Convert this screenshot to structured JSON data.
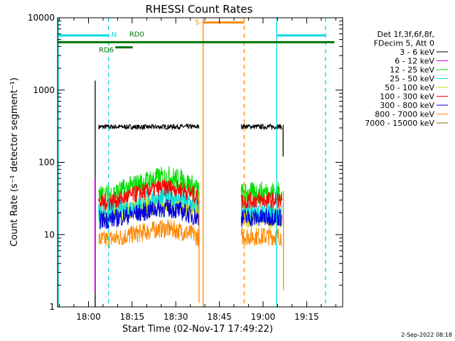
{
  "chart_data": {
    "type": "line",
    "title": "RHESSI Count Rates",
    "xlabel": "Start Time (02-Nov-17 17:49:22)",
    "ylabel": "Count Rate (s⁻¹ detector segment⁻¹)",
    "x_unit": "minutes of day",
    "xlim": [
      1069.37,
      1167.37
    ],
    "ylim": [
      1,
      10000
    ],
    "log_y": true,
    "grid": false,
    "legend_position": "top-right",
    "x_ticks": [
      {
        "value": 1080,
        "label": "18:00"
      },
      {
        "value": 1095,
        "label": "18:15"
      },
      {
        "value": 1110,
        "label": "18:30"
      },
      {
        "value": 1125,
        "label": "18:45"
      },
      {
        "value": 1140,
        "label": "19:00"
      },
      {
        "value": 1155,
        "label": "19:15"
      }
    ],
    "y_ticks": [
      {
        "value": 1,
        "label": "1"
      },
      {
        "value": 10,
        "label": "10"
      },
      {
        "value": 100,
        "label": "100"
      },
      {
        "value": 1000,
        "label": "1000"
      },
      {
        "value": 10000,
        "label": "10000"
      }
    ],
    "legend_header": [
      "Det 1f,3f,6f,8f,",
      "FDecim 5, Att 0"
    ],
    "series": [
      {
        "name": "3 - 6 keV",
        "color": "#000000",
        "segments": [
          {
            "x": [
              1083.5,
              1090,
              1100,
              1110,
              1118
            ],
            "y": [
              310,
              310,
              308,
              312,
              310
            ]
          },
          {
            "x": [
              1132.5,
              1140,
              1146.5
            ],
            "y": [
              315,
              310,
              312
            ]
          }
        ]
      },
      {
        "name": "6 - 12 keV",
        "color": "#cc00cc",
        "segments": []
      },
      {
        "name": "12 - 25 keV",
        "color": "#00dd00",
        "segments": [
          {
            "x": [
              1083.5,
              1086,
              1090,
              1095,
              1100,
              1104,
              1108,
              1112,
              1116,
              1118
            ],
            "y": [
              34,
              35,
              38,
              46,
              54,
              60,
              62,
              56,
              46,
              40
            ]
          },
          {
            "x": [
              1132.5,
              1136,
              1140,
              1144,
              1146.5
            ],
            "y": [
              36,
              37,
              38,
              38,
              37
            ]
          }
        ]
      },
      {
        "name": "25 - 50 keV",
        "color": "#00dddd",
        "segments": [
          {
            "x": [
              1083.5,
              1090,
              1095,
              1100,
              1104,
              1108,
              1112,
              1116,
              1118
            ],
            "y": [
              21,
              22,
              25,
              30,
              33,
              34,
              31,
              26,
              23
            ]
          },
          {
            "x": [
              1132.5,
              1146.5
            ],
            "y": [
              20,
              20
            ]
          }
        ]
      },
      {
        "name": "50 - 100 keV",
        "color": "#dddd00",
        "segments": [
          {
            "x": [
              1083.5,
              1090,
              1095,
              1100,
              1104,
              1108,
              1112,
              1116,
              1118
            ],
            "y": [
              19,
              20,
              22,
              25,
              27,
              28,
              26,
              23,
              21
            ]
          },
          {
            "x": [
              1132.5,
              1146.5
            ],
            "y": [
              17,
              17
            ]
          }
        ]
      },
      {
        "name": "100 - 300 keV",
        "color": "#ff0000",
        "segments": [
          {
            "x": [
              1083.5,
              1086,
              1090,
              1095,
              1100,
              1104,
              1108,
              1112,
              1116,
              1118
            ],
            "y": [
              28,
              28,
              30,
              35,
              40,
              44,
              45,
              42,
              36,
              32
            ]
          },
          {
            "x": [
              1132.5,
              1136,
              1140,
              1144,
              1146.5
            ],
            "y": [
              29,
              30,
              30,
              30,
              29
            ]
          }
        ]
      },
      {
        "name": "300 - 800 keV",
        "color": "#0000dd",
        "segments": [
          {
            "x": [
              1083.5,
              1086,
              1090,
              1095,
              1100,
              1104,
              1108,
              1112,
              1116,
              1118
            ],
            "y": [
              16,
              16,
              17,
              19,
              21,
              23,
              23,
              21,
              18,
              17
            ]
          },
          {
            "x": [
              1132.5,
              1136,
              1140,
              1144,
              1146.5
            ],
            "y": [
              17,
              17,
              17,
              18,
              17
            ]
          }
        ]
      },
      {
        "name": "800 - 7000 keV",
        "color": "#ff8800",
        "segments": [
          {
            "x": [
              1083.5,
              1086,
              1090,
              1095,
              1100,
              1104,
              1108,
              1112,
              1116,
              1118
            ],
            "y": [
              8.5,
              8.5,
              9,
              10,
              11,
              12,
              12,
              11,
              10,
              9
            ]
          },
          {
            "x": [
              1132.5,
              1136,
              1140,
              1144,
              1146.5
            ],
            "y": [
              9.5,
              9.5,
              9.5,
              9.5,
              9.5
            ]
          }
        ]
      },
      {
        "name": "7000 - 15000 keV",
        "color": "#886600",
        "segments": []
      }
    ],
    "annotations": {
      "vertical_lines": [
        {
          "x": 1069.6,
          "color": "#00dddd",
          "style": "solid"
        },
        {
          "x": 1086.9,
          "color": "#00dddd",
          "style": "dashed"
        },
        {
          "x": 1119.4,
          "color": "#ff8800",
          "style": "solid"
        },
        {
          "x": 1133.5,
          "color": "#ff8800",
          "style": "dashed"
        },
        {
          "x": 1144.7,
          "color": "#00dddd",
          "style": "solid"
        },
        {
          "x": 1161.5,
          "color": "#00dddd",
          "style": "dashed"
        }
      ],
      "bars": [
        {
          "label": "N",
          "x": [
            1069.37,
            1086.9
          ],
          "y": 5700,
          "color": "#00dddd"
        },
        {
          "label": "",
          "x": [
            1144.7,
            1161.5
          ],
          "y": 5700,
          "color": "#00dddd"
        },
        {
          "label": "S",
          "x": [
            1119.4,
            1133.5
          ],
          "y": 8600,
          "color": "#ff8800"
        },
        {
          "label": "",
          "x": [
            1069.37,
            1164.5
          ],
          "y": 4600,
          "color": "#007700"
        },
        {
          "label": "RD6",
          "x": [
            1089.2,
            1095.2
          ],
          "y": 3900,
          "color": "#007700"
        },
        {
          "label": "RD0",
          "x": [
            1088.5,
            1094.5
          ],
          "y": 5000,
          "color": "#007700",
          "label_only": true
        }
      ],
      "spikes": [
        {
          "x": 1082.3,
          "y": [
            1.0,
            1350
          ],
          "color": "#000000"
        },
        {
          "x": 1082.2,
          "y": [
            1.6,
            60
          ],
          "color": "#cc00cc"
        },
        {
          "x": 1118.0,
          "y": [
            1.15,
            40
          ],
          "color": "#ff8800"
        },
        {
          "x": 1147.0,
          "y": [
            1.7,
            40
          ],
          "color": "#ff8800"
        },
        {
          "x": 1146.9,
          "y": [
            120,
            330
          ],
          "color": "#000000"
        }
      ]
    }
  },
  "timestamp": "2-Sep-2022 08:18"
}
